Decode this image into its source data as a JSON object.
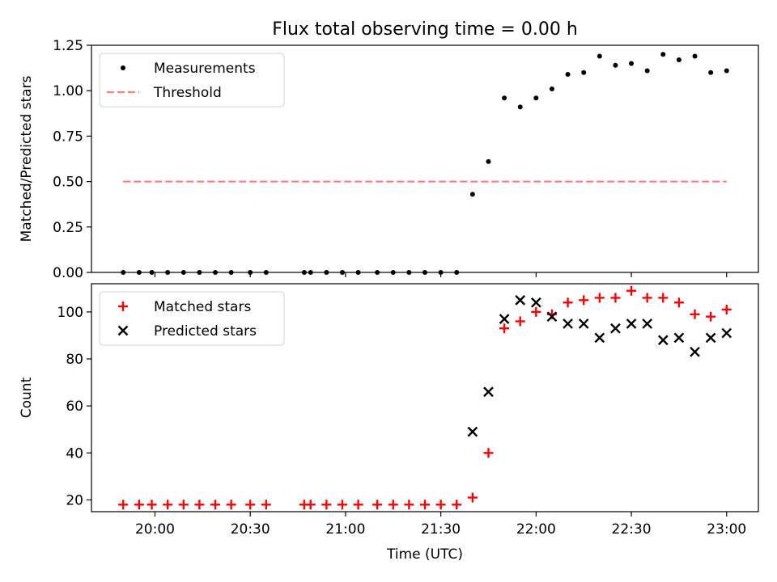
{
  "title": "Flux total observing time = 0.00 h",
  "chart_data": [
    {
      "type": "scatter",
      "ylabel": "Matched/Predicted stars",
      "xlabel": "",
      "ylim": [
        0.0,
        1.25
      ],
      "yticks": [
        "0.00",
        "0.25",
        "0.50",
        "0.75",
        "1.00",
        "1.25"
      ],
      "legend": {
        "position": "top-left",
        "entries": [
          "Measurements",
          "Threshold"
        ]
      },
      "series": [
        {
          "name": "Measurements",
          "marker": "dot",
          "color": "#000000",
          "x": [
            "19:50",
            "19:55",
            "19:59",
            "20:04",
            "20:09",
            "20:14",
            "20:19",
            "20:24",
            "20:30",
            "20:35",
            "20:47",
            "20:49",
            "20:54",
            "20:59",
            "21:04",
            "21:10",
            "21:15",
            "21:20",
            "21:25",
            "21:30",
            "21:35",
            "21:40",
            "21:45",
            "21:50",
            "21:55",
            "22:00",
            "22:05",
            "22:10",
            "22:15",
            "22:20",
            "22:25",
            "22:30",
            "22:35",
            "22:40",
            "22:45",
            "22:50",
            "22:55",
            "23:00"
          ],
          "y": [
            0,
            0,
            0,
            0,
            0,
            0,
            0,
            0,
            0,
            0,
            0,
            0,
            0,
            0,
            0,
            0,
            0,
            0,
            0,
            0,
            0,
            0.43,
            0.61,
            0.96,
            0.91,
            0.96,
            1.01,
            1.09,
            1.1,
            1.19,
            1.14,
            1.15,
            1.11,
            1.2,
            1.17,
            1.19,
            1.1,
            1.11
          ]
        },
        {
          "name": "Threshold",
          "style": "dashed",
          "color": "#ff8080",
          "x": [
            "19:50",
            "23:00"
          ],
          "y": [
            0.5,
            0.5
          ]
        }
      ]
    },
    {
      "type": "scatter",
      "ylabel": "Count",
      "xlabel": "Time (UTC)",
      "ylim": [
        15,
        112
      ],
      "yticks": [
        "20",
        "40",
        "60",
        "80",
        "100"
      ],
      "legend": {
        "position": "top-left",
        "entries": [
          "Matched stars",
          "Predicted stars"
        ]
      },
      "series": [
        {
          "name": "Matched stars",
          "marker": "plus",
          "color": "#ff0000",
          "x": [
            "19:50",
            "19:55",
            "19:59",
            "20:04",
            "20:09",
            "20:14",
            "20:19",
            "20:24",
            "20:30",
            "20:35",
            "20:47",
            "20:49",
            "20:54",
            "20:59",
            "21:04",
            "21:10",
            "21:15",
            "21:20",
            "21:25",
            "21:30",
            "21:35",
            "21:40",
            "21:45",
            "21:50",
            "21:55",
            "22:00",
            "22:05",
            "22:10",
            "22:15",
            "22:20",
            "22:25",
            "22:30",
            "22:35",
            "22:40",
            "22:45",
            "22:50",
            "22:55",
            "23:00"
          ],
          "y": [
            18,
            18,
            18,
            18,
            18,
            18,
            18,
            18,
            18,
            18,
            18,
            18,
            18,
            18,
            18,
            18,
            18,
            18,
            18,
            18,
            18,
            21,
            40,
            93,
            96,
            100,
            99,
            104,
            105,
            106,
            106,
            109,
            106,
            106,
            104,
            99,
            98,
            101
          ]
        },
        {
          "name": "Predicted stars",
          "marker": "x",
          "color": "#000000",
          "x": [
            "21:40",
            "21:45",
            "21:50",
            "21:55",
            "22:00",
            "22:05",
            "22:10",
            "22:15",
            "22:20",
            "22:25",
            "22:30",
            "22:35",
            "22:40",
            "22:45",
            "22:50",
            "22:55",
            "23:00"
          ],
          "y": [
            49,
            66,
            97,
            105,
            104,
            98,
            95,
            95,
            89,
            93,
            95,
            95,
            88,
            89,
            83,
            89,
            91
          ]
        }
      ]
    }
  ],
  "xaxis": {
    "ticks": [
      "20:00",
      "20:30",
      "21:00",
      "21:30",
      "22:00",
      "22:30",
      "23:00"
    ],
    "range": [
      "19:40",
      "23:10"
    ]
  }
}
